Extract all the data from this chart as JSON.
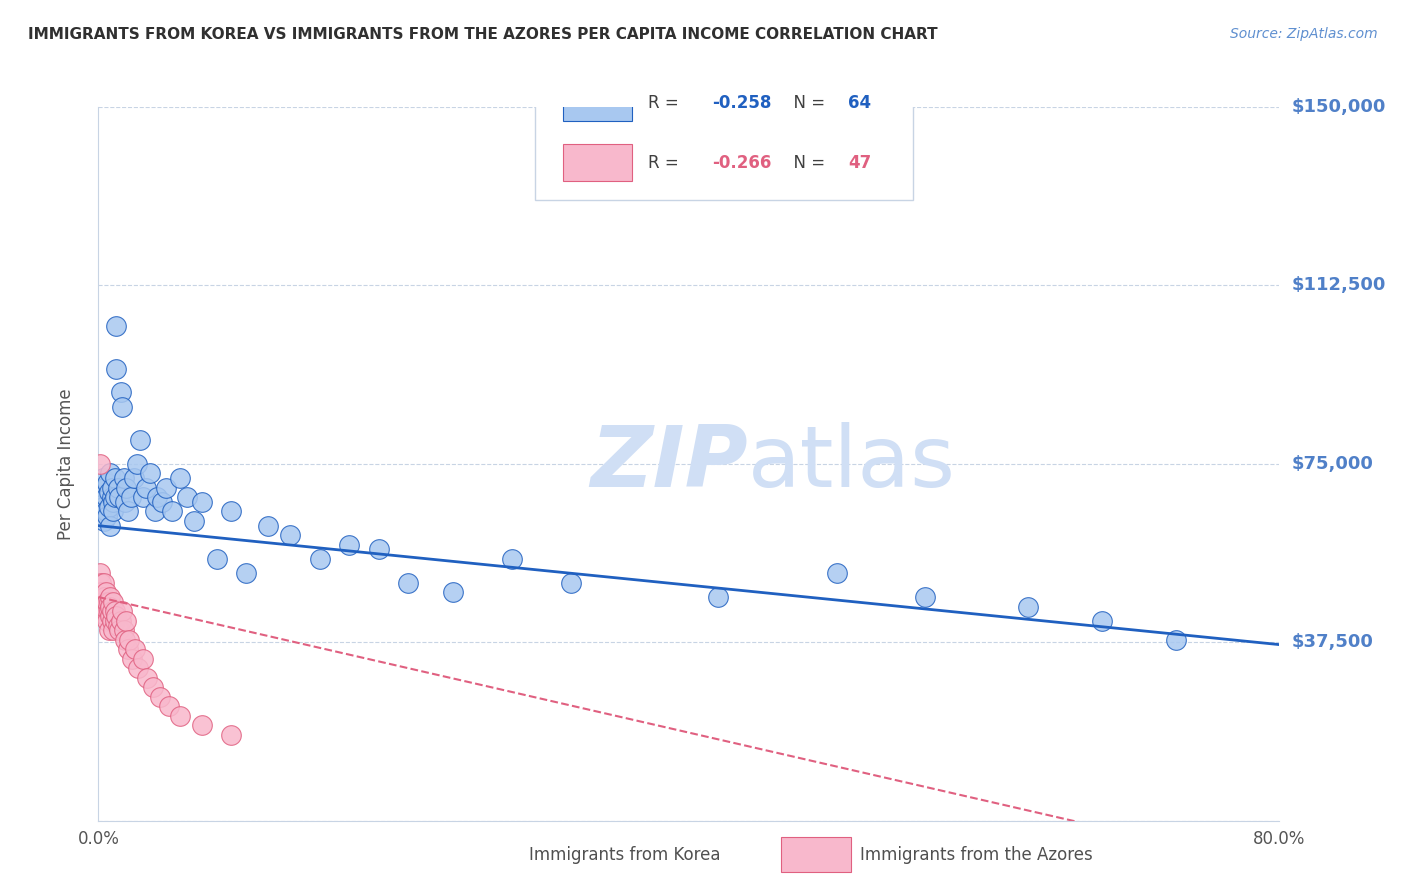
{
  "title": "IMMIGRANTS FROM KOREA VS IMMIGRANTS FROM THE AZORES PER CAPITA INCOME CORRELATION CHART",
  "source": "Source: ZipAtlas.com",
  "ylabel": "Per Capita Income",
  "yticks": [
    0,
    37500,
    75000,
    112500,
    150000
  ],
  "ytick_labels": [
    "",
    "$37,500",
    "$75,000",
    "$112,500",
    "$150,000"
  ],
  "xmin": 0.0,
  "xmax": 0.8,
  "ymin": 0,
  "ymax": 150000,
  "korea_R": -0.258,
  "korea_N": 64,
  "azores_R": -0.266,
  "azores_N": 47,
  "korea_color": "#a8c8f0",
  "azores_color": "#f8b8cc",
  "korea_line_color": "#2060c0",
  "azores_line_color": "#e06080",
  "watermark_color": "#d0dff5",
  "title_color": "#303030",
  "source_color": "#6090d0",
  "yaxis_label_color": "#5080c8",
  "grid_color": "#c8d4e4",
  "korea_x": [
    0.001,
    0.002,
    0.003,
    0.003,
    0.004,
    0.004,
    0.005,
    0.005,
    0.006,
    0.006,
    0.007,
    0.007,
    0.008,
    0.008,
    0.009,
    0.009,
    0.01,
    0.01,
    0.011,
    0.011,
    0.012,
    0.012,
    0.013,
    0.014,
    0.015,
    0.016,
    0.017,
    0.018,
    0.019,
    0.02,
    0.022,
    0.024,
    0.026,
    0.028,
    0.03,
    0.032,
    0.035,
    0.038,
    0.04,
    0.043,
    0.046,
    0.05,
    0.055,
    0.06,
    0.065,
    0.07,
    0.08,
    0.09,
    0.1,
    0.115,
    0.13,
    0.15,
    0.17,
    0.19,
    0.21,
    0.24,
    0.28,
    0.32,
    0.42,
    0.5,
    0.56,
    0.63,
    0.68,
    0.73
  ],
  "korea_y": [
    65000,
    68000,
    72000,
    66000,
    70000,
    63000,
    68000,
    65000,
    71000,
    64000,
    69000,
    66000,
    73000,
    62000,
    68000,
    70000,
    67000,
    65000,
    72000,
    68000,
    95000,
    104000,
    70000,
    68000,
    90000,
    87000,
    72000,
    67000,
    70000,
    65000,
    68000,
    72000,
    75000,
    80000,
    68000,
    70000,
    73000,
    65000,
    68000,
    67000,
    70000,
    65000,
    72000,
    68000,
    63000,
    67000,
    55000,
    65000,
    52000,
    62000,
    60000,
    55000,
    58000,
    57000,
    50000,
    48000,
    55000,
    50000,
    47000,
    52000,
    47000,
    45000,
    42000,
    38000
  ],
  "azores_x": [
    0.001,
    0.001,
    0.002,
    0.002,
    0.003,
    0.003,
    0.004,
    0.004,
    0.005,
    0.005,
    0.005,
    0.006,
    0.006,
    0.006,
    0.007,
    0.007,
    0.007,
    0.008,
    0.008,
    0.008,
    0.009,
    0.009,
    0.01,
    0.01,
    0.011,
    0.011,
    0.012,
    0.013,
    0.014,
    0.015,
    0.016,
    0.017,
    0.018,
    0.019,
    0.02,
    0.021,
    0.023,
    0.025,
    0.027,
    0.03,
    0.033,
    0.037,
    0.042,
    0.048,
    0.055,
    0.07,
    0.09
  ],
  "azores_y": [
    75000,
    52000,
    50000,
    48000,
    46000,
    44000,
    50000,
    47000,
    45000,
    43000,
    48000,
    44000,
    46000,
    42000,
    44000,
    46000,
    40000,
    47000,
    43000,
    45000,
    42000,
    44000,
    46000,
    40000,
    44000,
    42000,
    43000,
    41000,
    40000,
    42000,
    44000,
    40000,
    38000,
    42000,
    36000,
    38000,
    34000,
    36000,
    32000,
    34000,
    30000,
    28000,
    26000,
    24000,
    22000,
    20000,
    18000
  ]
}
